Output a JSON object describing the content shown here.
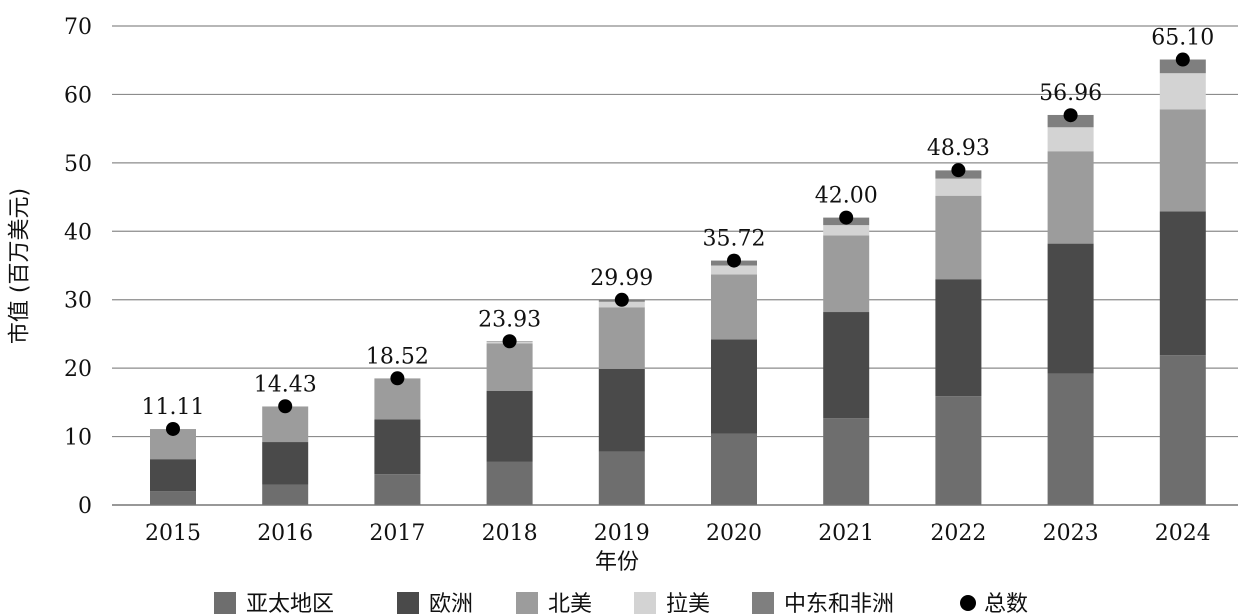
{
  "chart_data": {
    "type": "bar",
    "stacked": true,
    "categories": [
      "2015",
      "2016",
      "2017",
      "2018",
      "2019",
      "2020",
      "2021",
      "2022",
      "2023",
      "2024"
    ],
    "series": [
      {
        "name": "亚太地区",
        "color": "#6e6e6e",
        "values": [
          2.0,
          3.0,
          4.5,
          6.3,
          7.8,
          10.4,
          12.7,
          15.9,
          19.2,
          21.9
        ]
      },
      {
        "name": "欧洲",
        "color": "#4a4a4a",
        "values": [
          4.7,
          6.2,
          8.0,
          10.4,
          12.1,
          13.8,
          15.5,
          17.1,
          19.0,
          21.0
        ]
      },
      {
        "name": "北美",
        "color": "#9c9c9c",
        "values": [
          4.4,
          5.2,
          6.0,
          6.9,
          9.0,
          9.5,
          11.2,
          12.2,
          13.5,
          14.9
        ]
      },
      {
        "name": "拉美",
        "color": "#d3d3d3",
        "values": [
          0.0,
          0.0,
          0.0,
          0.3,
          0.8,
          1.3,
          1.5,
          2.5,
          3.5,
          5.3
        ]
      },
      {
        "name": "中东和非洲",
        "color": "#7f7f7f",
        "values": [
          0.0,
          0.0,
          0.0,
          0.03,
          0.3,
          0.72,
          1.1,
          1.2,
          1.8,
          2.0
        ]
      }
    ],
    "total": {
      "name": "总数",
      "color": "#000000",
      "values": [
        11.11,
        14.43,
        18.52,
        23.93,
        29.99,
        35.72,
        42.0,
        48.93,
        56.96,
        65.1
      ]
    },
    "total_labels": [
      "11.11",
      "14.43",
      "18.52",
      "23.93",
      "29.99",
      "35.72",
      "42.00",
      "48.93",
      "56.96",
      "65.10"
    ],
    "y_ticks": [
      "0",
      "10",
      "20",
      "30",
      "40",
      "50",
      "60",
      "70"
    ],
    "ylim": [
      0,
      70
    ],
    "xlabel": "年份",
    "ylabel": "市值 (百万美元)",
    "grid": true,
    "legend_position": "bottom"
  }
}
